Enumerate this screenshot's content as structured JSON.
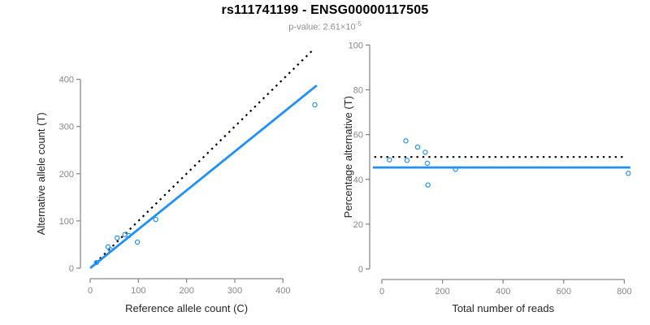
{
  "header": {
    "title": "rs111741199 - ENSG00000117505",
    "pvalue_text": "p-value: 2.61×10",
    "pvalue_exponent": "-5"
  },
  "colors": {
    "accent_blue": "#1E90FF",
    "point_blue": "#1E90FF",
    "dotted_black": "#000000",
    "axis_gray": "#8a8a8a",
    "tick_label_gray": "#878787",
    "axis_title_color": "#262626",
    "subtitle_gray": "#8f8f8f",
    "background": "#ffffff"
  },
  "chart_data": [
    {
      "type": "scatter",
      "panel": "allele-counts",
      "xlabel": "Reference allele count (C)",
      "ylabel": "Alternative allele count (T)",
      "xticks": [
        0,
        100,
        200,
        300,
        400
      ],
      "yticks": [
        0,
        100,
        200,
        300,
        400
      ],
      "xlim": [
        0,
        480
      ],
      "ylim": [
        0,
        480
      ],
      "grid": false,
      "points": [
        [
          13,
          12
        ],
        [
          37,
          45
        ],
        [
          42,
          39
        ],
        [
          56,
          64
        ],
        [
          72,
          71
        ],
        [
          80,
          69
        ],
        [
          98,
          55
        ],
        [
          136,
          103
        ],
        [
          466,
          346
        ]
      ],
      "lines": [
        {
          "name": "identity-line",
          "style": "dotted",
          "color": "#000000",
          "x1": 2,
          "y1": 2,
          "x2": 465,
          "y2": 465
        },
        {
          "name": "fit-line",
          "style": "solid",
          "color": "#1E90FF",
          "x1": 0,
          "y1": 0,
          "x2": 470,
          "y2": 387
        }
      ]
    },
    {
      "type": "scatter",
      "panel": "percentage-alternative",
      "xlabel": "Total number of reads",
      "ylabel": "Percentage alternative (T)",
      "xticks": [
        0,
        200,
        400,
        600,
        800
      ],
      "yticks": [
        0,
        20,
        40,
        60,
        80,
        100
      ],
      "xlim": [
        0,
        830
      ],
      "ylim": [
        0,
        100
      ],
      "grid": false,
      "points": [
        [
          25,
          48.7
        ],
        [
          79,
          57.2
        ],
        [
          83,
          48.5
        ],
        [
          118,
          54.4
        ],
        [
          143,
          52.1
        ],
        [
          150,
          47.2
        ],
        [
          152,
          37.5
        ],
        [
          243,
          44.5
        ],
        [
          813,
          42.7
        ]
      ],
      "lines": [
        {
          "name": "expected-50-line",
          "style": "dotted",
          "color": "#000000",
          "x1": -25,
          "y1": 50,
          "x2": 800,
          "y2": 50
        },
        {
          "name": "observed-mean-line",
          "style": "solid",
          "color": "#1E90FF",
          "x1": -30,
          "y1": 45.3,
          "x2": 820,
          "y2": 45.3
        }
      ]
    }
  ]
}
